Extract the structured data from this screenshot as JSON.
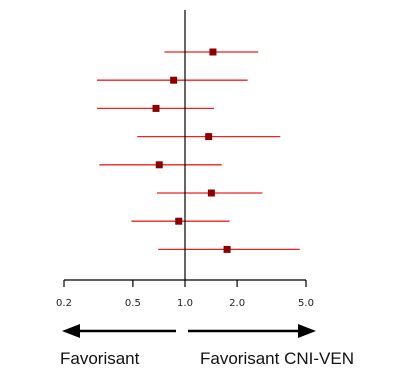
{
  "chart_data": {
    "type": "forest",
    "scale": "log",
    "xlim": [
      0.2,
      5.0
    ],
    "reference_line": 1.0,
    "x_ticks": [
      "0.2",
      "0.5",
      "1.0",
      "2.0",
      "5.0"
    ],
    "x_tick_values": [
      0.2,
      0.5,
      1.0,
      2.0,
      5.0
    ],
    "estimates": [
      {
        "or": 1.45,
        "lower": 0.76,
        "upper": 2.65
      },
      {
        "or": 0.86,
        "lower": 0.31,
        "upper": 2.3
      },
      {
        "or": 0.68,
        "lower": 0.31,
        "upper": 1.47
      },
      {
        "or": 1.37,
        "lower": 0.53,
        "upper": 3.55
      },
      {
        "or": 0.71,
        "lower": 0.32,
        "upper": 1.63
      },
      {
        "or": 1.42,
        "lower": 0.69,
        "upper": 2.8
      },
      {
        "or": 0.92,
        "lower": 0.49,
        "upper": 1.81
      },
      {
        "or": 1.75,
        "lower": 0.7,
        "upper": 4.6
      }
    ],
    "colors": {
      "ci_line": "#ee2222",
      "point": "#8b0000",
      "axis": "#000000"
    }
  },
  "annotations": {
    "left_label": "Favorisant",
    "right_label": "Favorisant CNI-VEN"
  }
}
